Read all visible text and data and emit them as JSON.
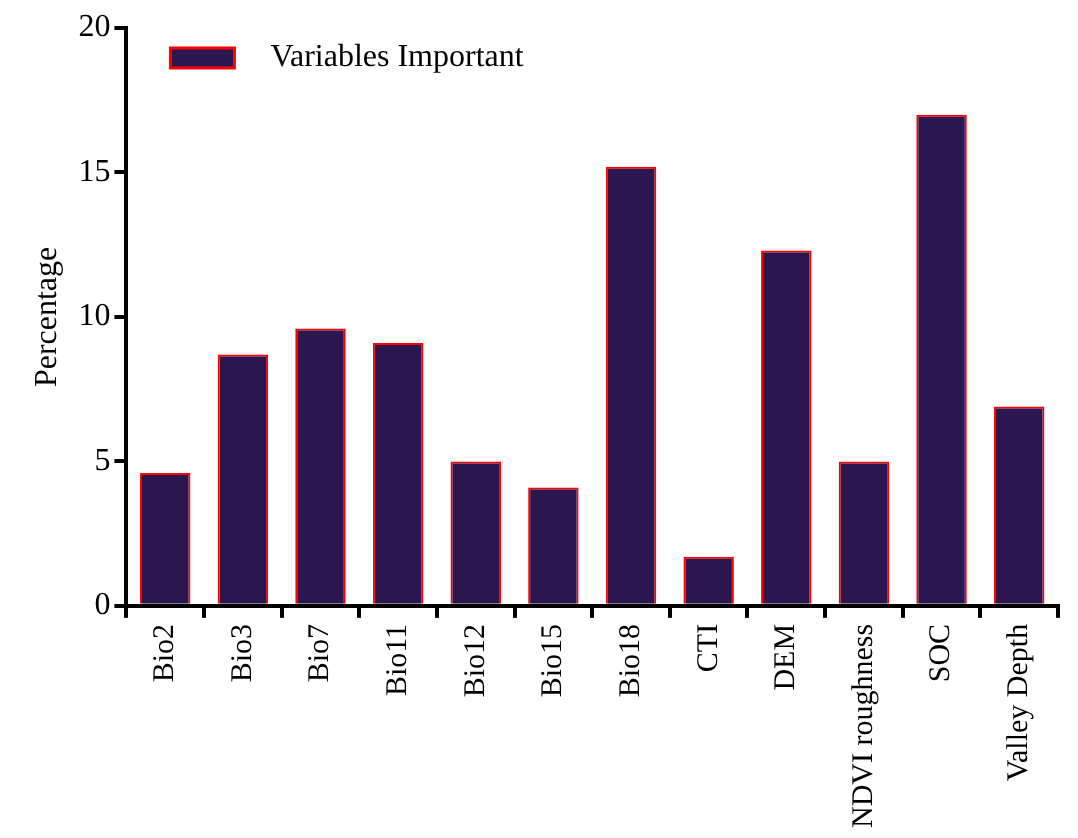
{
  "chart_data": {
    "type": "bar",
    "ylabel": "Percentage",
    "categories": [
      "Bio2",
      "Bio3",
      "Bio7",
      "Bio11",
      "Bio12",
      "Bio15",
      "Bio18",
      "CTI",
      "DEM",
      "NDVI roughness",
      "SOC",
      "Valley Depth"
    ],
    "series": [
      {
        "name": "Variables Important",
        "color": "#2b1650",
        "values": [
          4.6,
          8.7,
          9.6,
          9.1,
          5.0,
          4.1,
          15.2,
          1.7,
          12.3,
          5.0,
          17.0,
          6.9
        ]
      }
    ],
    "ylim": [
      0,
      20
    ],
    "yticks": [
      0,
      5,
      10,
      15,
      20
    ],
    "grid": false,
    "legend": "top left"
  }
}
